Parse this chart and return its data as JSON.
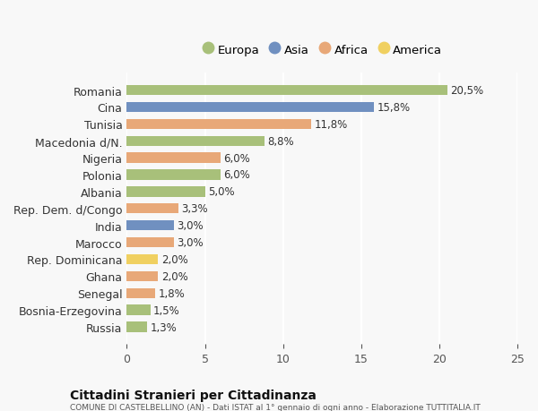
{
  "countries": [
    "Romania",
    "Cina",
    "Tunisia",
    "Macedonia d/N.",
    "Nigeria",
    "Polonia",
    "Albania",
    "Rep. Dem. d/Congo",
    "India",
    "Marocco",
    "Rep. Dominicana",
    "Ghana",
    "Senegal",
    "Bosnia-Erzegovina",
    "Russia"
  ],
  "values": [
    20.5,
    15.8,
    11.8,
    8.8,
    6.0,
    6.0,
    5.0,
    3.3,
    3.0,
    3.0,
    2.0,
    2.0,
    1.8,
    1.5,
    1.3
  ],
  "continents": [
    "Europa",
    "Asia",
    "Africa",
    "Europa",
    "Africa",
    "Europa",
    "Europa",
    "Africa",
    "Asia",
    "Africa",
    "America",
    "Africa",
    "Africa",
    "Europa",
    "Europa"
  ],
  "colors": {
    "Europa": "#a8c07a",
    "Asia": "#7090c0",
    "Africa": "#e8a878",
    "America": "#f0d060"
  },
  "labels": [
    "20,5%",
    "15,8%",
    "11,8%",
    "8,8%",
    "6,0%",
    "6,0%",
    "5,0%",
    "3,3%",
    "3,0%",
    "3,0%",
    "2,0%",
    "2,0%",
    "1,8%",
    "1,5%",
    "1,3%"
  ],
  "xlim": [
    0,
    25
  ],
  "xticks": [
    0,
    5,
    10,
    15,
    20,
    25
  ],
  "title": "Cittadini Stranieri per Cittadinanza",
  "subtitle": "COMUNE DI CASTELBELLINO (AN) - Dati ISTAT al 1° gennaio di ogni anno - Elaborazione TUTTITALIA.IT",
  "legend_order": [
    "Europa",
    "Asia",
    "Africa",
    "America"
  ],
  "background_color": "#f8f8f8"
}
